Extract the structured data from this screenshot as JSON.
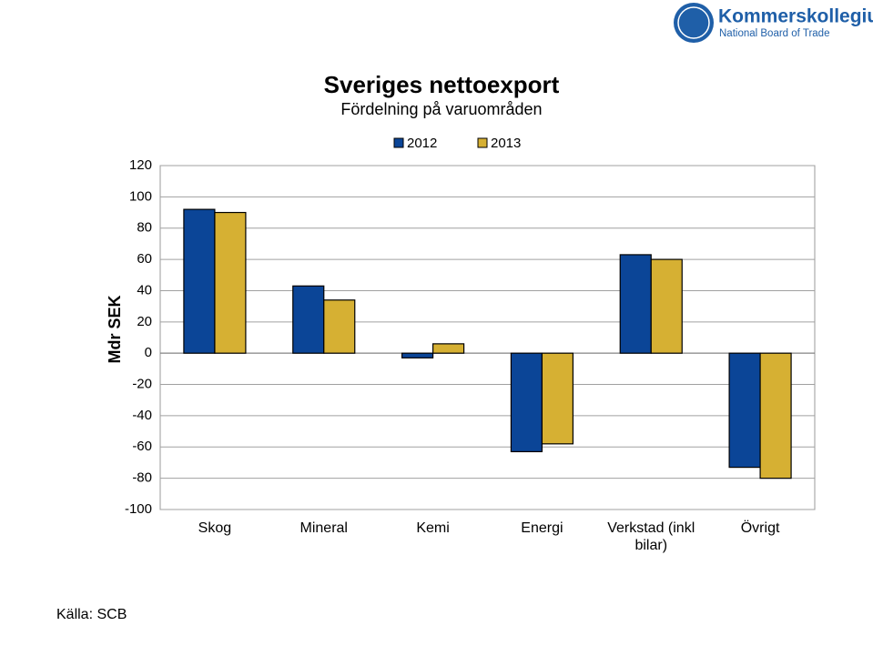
{
  "logo": {
    "name": "Kommerskollegium",
    "subtitle": "National Board of Trade"
  },
  "source": "Källa: SCB",
  "chart_data": {
    "type": "bar",
    "title": "Sveriges nettoexport",
    "subtitle": "Fördelning på varuområden",
    "y_label": "Mdr SEK",
    "categories": [
      "Skog",
      "Mineral",
      "Kemi",
      "Energi",
      "Verkstad (inkl bilar)",
      "Övrigt"
    ],
    "series": [
      {
        "name": "2012",
        "color": "#0b4597",
        "values": [
          92,
          43,
          -3,
          -63,
          63,
          -73
        ]
      },
      {
        "name": "2013",
        "color": "#d6b033",
        "values": [
          90,
          34,
          6,
          -58,
          60,
          -80
        ]
      }
    ],
    "ylim": [
      -100,
      120
    ],
    "yticks": [
      -100,
      -80,
      -60,
      -40,
      -20,
      0,
      20,
      40,
      60,
      80,
      100,
      120
    ],
    "grid": true,
    "legend": "top"
  }
}
